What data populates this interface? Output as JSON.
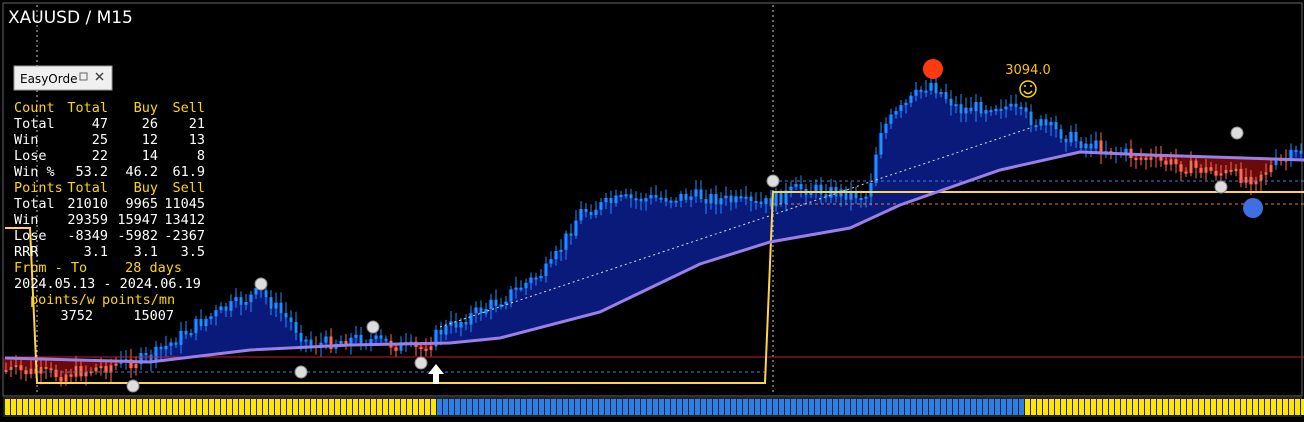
{
  "header": {
    "symbol": "XAUUSD / M15"
  },
  "panel": {
    "title": "EasyOrde"
  },
  "stats": {
    "count_header": [
      "Count",
      "Total",
      "Buy",
      "Sell"
    ],
    "count_rows": [
      [
        "Total",
        "47",
        "26",
        "21"
      ],
      [
        "Win",
        "25",
        "12",
        "13"
      ],
      [
        "Lose",
        "22",
        "14",
        "8"
      ],
      [
        "Win %",
        "53.2",
        "46.2",
        "61.9"
      ]
    ],
    "points_header": [
      "Points",
      "Total",
      "Buy",
      "Sell"
    ],
    "points_rows": [
      [
        "Total",
        "21010",
        "9965",
        "11045"
      ],
      [
        "Win",
        "29359",
        "15947",
        "13412"
      ],
      [
        "Lose",
        "-8349",
        "-5982",
        "-2367"
      ],
      [
        "RRR",
        "3.1",
        "3.1",
        "3.5"
      ]
    ],
    "period": {
      "label": "From - To",
      "days": "28 days",
      "range": "2024.05.13 - 2024.06.19"
    },
    "rates_header": [
      "points/w",
      "points/mn"
    ],
    "rates": [
      "3752",
      "15007"
    ]
  },
  "price_label": "3094.0"
}
